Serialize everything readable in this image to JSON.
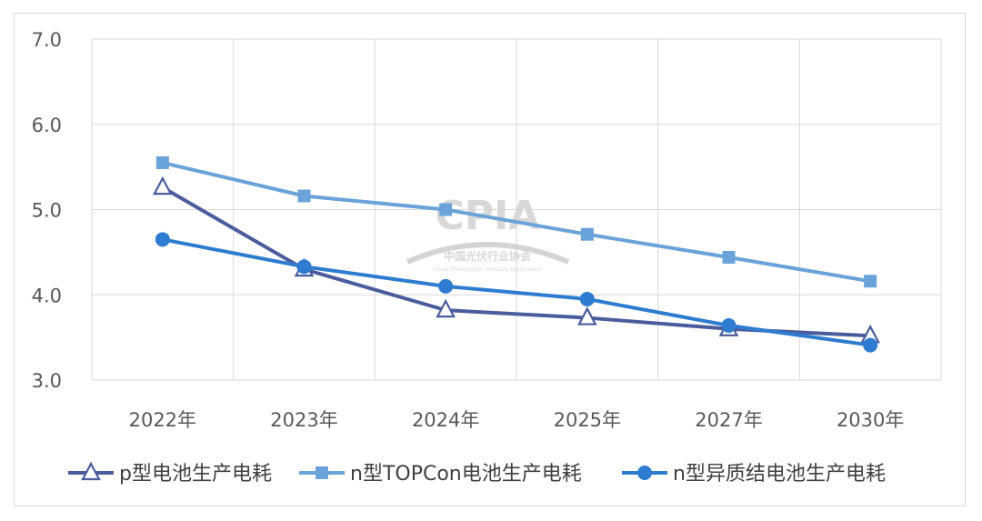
{
  "chart_data": {
    "type": "line",
    "categories": [
      "2022年",
      "2023年",
      "2024年",
      "2025年",
      "2027年",
      "2030年"
    ],
    "ylim": [
      3.0,
      7.0
    ],
    "yticks": [
      "3.0",
      "4.0",
      "5.0",
      "6.0",
      "7.0"
    ],
    "grid": true,
    "legend_position": "bottom",
    "series": [
      {
        "name": "p型电池生产电耗",
        "values": [
          5.26,
          4.3,
          3.82,
          3.73,
          3.6,
          3.52
        ],
        "color": "#4a5c9c",
        "marker": "triangle-open"
      },
      {
        "name": "n型TOPCon电池生产电耗",
        "values": [
          5.55,
          5.16,
          5.0,
          4.71,
          4.44,
          4.16
        ],
        "color": "#6aa3d9",
        "marker": "square"
      },
      {
        "name": "n型异质结电池生产电耗",
        "values": [
          4.65,
          4.33,
          4.1,
          3.95,
          3.64,
          3.41
        ],
        "color": "#2d7cd1",
        "marker": "circle"
      }
    ]
  },
  "watermark": {
    "logo": "CPIA",
    "org_cn": "中国光伏行业协会",
    "org_en": "China Photovoltaic Industry Association"
  }
}
